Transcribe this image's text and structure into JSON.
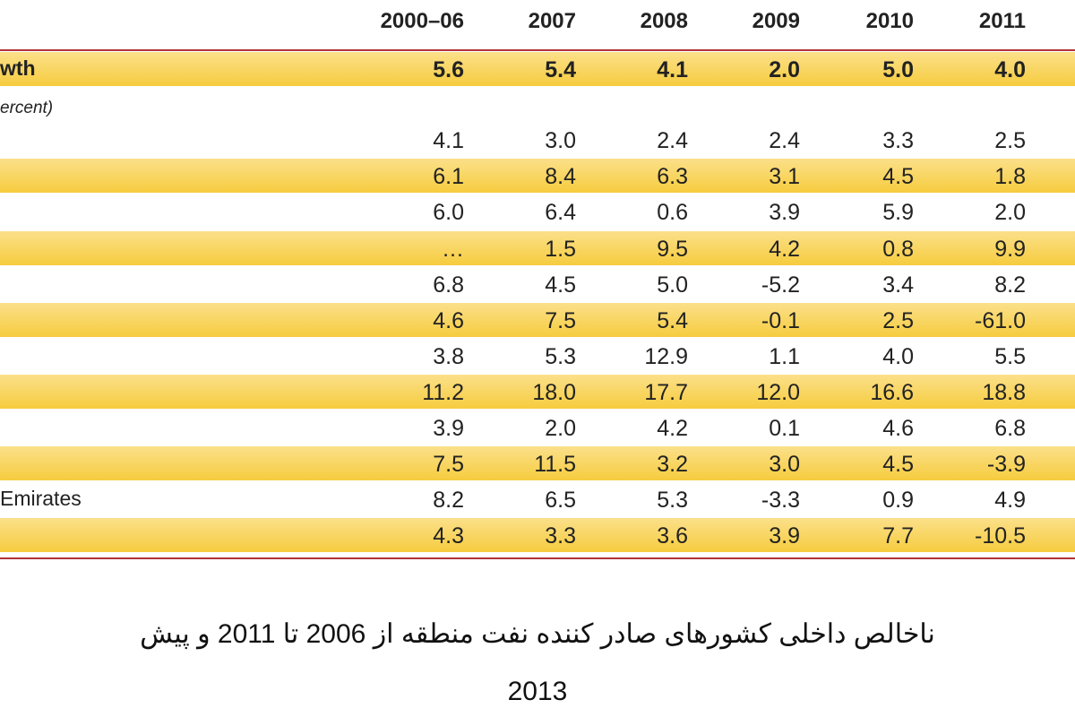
{
  "header": {
    "columns": [
      "2000–06",
      "2007",
      "2008",
      "2009",
      "2010",
      "2011"
    ]
  },
  "table": {
    "rows": [
      {
        "label": "wth",
        "cells": [
          "5.6",
          "5.4",
          "4.1",
          "2.0",
          "5.0",
          "4.0"
        ]
      },
      {
        "cells": [
          "4.1",
          "3.0",
          "2.4",
          "2.4",
          "3.3",
          "2.5"
        ]
      },
      {
        "cells": [
          "6.1",
          "8.4",
          "6.3",
          "3.1",
          "4.5",
          "1.8"
        ]
      },
      {
        "cells": [
          "6.0",
          "6.4",
          "0.6",
          "3.9",
          "5.9",
          "2.0"
        ]
      },
      {
        "cells": [
          "…",
          "1.5",
          "9.5",
          "4.2",
          "0.8",
          "9.9"
        ]
      },
      {
        "cells": [
          "6.8",
          "4.5",
          "5.0",
          "-5.2",
          "3.4",
          "8.2"
        ]
      },
      {
        "cells": [
          "4.6",
          "7.5",
          "5.4",
          "-0.1",
          "2.5",
          "-61.0"
        ]
      },
      {
        "cells": [
          "3.8",
          "5.3",
          "12.9",
          "1.1",
          "4.0",
          "5.5"
        ]
      },
      {
        "cells": [
          "11.2",
          "18.0",
          "17.7",
          "12.0",
          "16.6",
          "18.8"
        ]
      },
      {
        "cells": [
          "3.9",
          "2.0",
          "4.2",
          "0.1",
          "4.6",
          "6.8"
        ]
      },
      {
        "cells": [
          "7.5",
          "11.5",
          "3.2",
          "3.0",
          "4.5",
          "-3.9"
        ]
      },
      {
        "label": "Emirates",
        "cells": [
          "8.2",
          "6.5",
          "5.3",
          "-3.3",
          "0.9",
          "4.9"
        ]
      },
      {
        "cells": [
          "4.3",
          "3.3",
          "3.6",
          "3.9",
          "7.7",
          "-10.5"
        ]
      }
    ]
  },
  "note": "ercent)",
  "caption": [
    "ناخالص داخلی کشورهای صادر کننده نفت منطقه از 2006 تا 2011 و پیش",
    "2013"
  ]
}
